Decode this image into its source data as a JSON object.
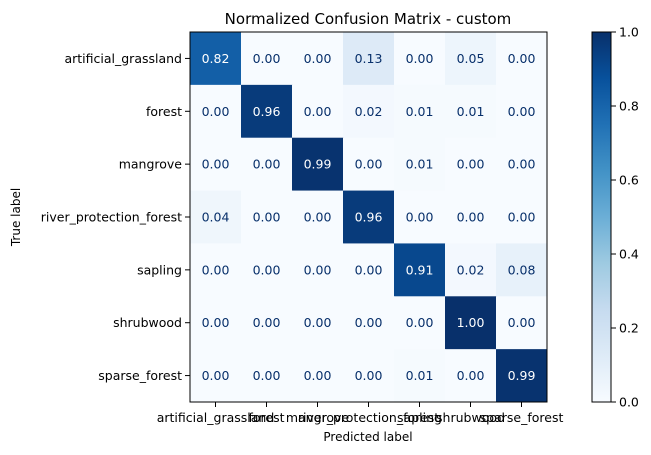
{
  "chart_data": {
    "type": "heatmap",
    "title": "Normalized Confusion Matrix - custom",
    "xlabel": "Predicted label",
    "ylabel": "True label",
    "row_labels": [
      "artificial_grassland",
      "forest",
      "mangrove",
      "river_protection_forest",
      "sapling",
      "shrubwood",
      "sparse_forest"
    ],
    "col_labels": [
      "artificial_grassland",
      "forest",
      "mangrove",
      "river_protection_forest",
      "sapling",
      "shrubwood",
      "sparse_forest"
    ],
    "values": [
      [
        0.82,
        0.0,
        0.0,
        0.13,
        0.0,
        0.05,
        0.0
      ],
      [
        0.0,
        0.96,
        0.0,
        0.02,
        0.01,
        0.01,
        0.0
      ],
      [
        0.0,
        0.0,
        0.99,
        0.0,
        0.01,
        0.0,
        0.0
      ],
      [
        0.04,
        0.0,
        0.0,
        0.96,
        0.0,
        0.0,
        0.0
      ],
      [
        0.0,
        0.0,
        0.0,
        0.0,
        0.91,
        0.02,
        0.08
      ],
      [
        0.0,
        0.0,
        0.0,
        0.0,
        0.0,
        1.0,
        0.0
      ],
      [
        0.0,
        0.0,
        0.0,
        0.0,
        0.01,
        0.0,
        0.99
      ]
    ],
    "value_format": "2 decimals",
    "colormap": "Blues",
    "colorbar": {
      "range": [
        0.0,
        1.0
      ],
      "ticks": [
        "0.0",
        "0.2",
        "0.4",
        "0.6",
        "0.8",
        "1.0"
      ]
    },
    "grid": false
  }
}
